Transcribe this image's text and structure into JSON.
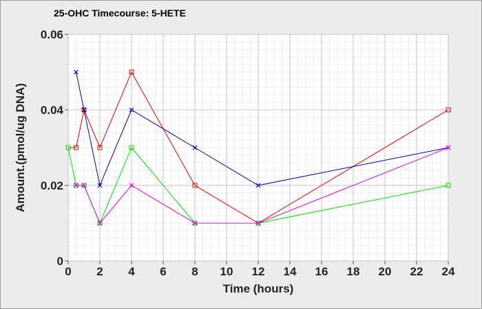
{
  "chart_data": {
    "type": "line",
    "title": "25-OHC Timecourse: 5-HETE",
    "xlabel": "Time (hours)",
    "ylabel": "Amount.(pmol/ug DNA)",
    "xlim": [
      0,
      24
    ],
    "ylim": [
      0,
      0.06
    ],
    "x_ticks": [
      0,
      2,
      4,
      6,
      8,
      10,
      12,
      14,
      16,
      18,
      20,
      22,
      24
    ],
    "y_ticks": [
      0,
      0.02,
      0.04,
      0.06
    ],
    "x_tick_labels": [
      "0",
      "2",
      "4",
      "6",
      "8",
      "10",
      "12",
      "14",
      "16",
      "18",
      "20",
      "22",
      "24"
    ],
    "y_tick_labels": [
      "0",
      "0.02",
      "0.04",
      "0.06"
    ],
    "grid": true,
    "legend": "none",
    "series": [
      {
        "color": "#dd0000",
        "marker": "square",
        "points": [
          [
            0,
            0.03
          ],
          [
            0.5,
            0.03
          ],
          [
            1,
            0.04
          ],
          [
            2,
            0.03
          ],
          [
            4,
            0.05
          ],
          [
            8,
            0.02
          ],
          [
            12,
            0.01
          ],
          [
            24,
            0.04
          ]
        ]
      },
      {
        "color": "#00dd00",
        "marker": "square",
        "points": [
          [
            0,
            0.03
          ],
          [
            0.5,
            0.02
          ],
          [
            1,
            0.02
          ],
          [
            2,
            0.01
          ],
          [
            4,
            0.03
          ],
          [
            8,
            0.01
          ],
          [
            12,
            0.01
          ],
          [
            24,
            0.02
          ]
        ]
      },
      {
        "color": "#0000aa",
        "marker": "x",
        "points": [
          [
            0.5,
            0.05
          ],
          [
            1,
            0.04
          ],
          [
            2,
            0.02
          ],
          [
            4,
            0.04
          ],
          [
            8,
            0.03
          ],
          [
            12,
            0.02
          ],
          [
            24,
            0.03
          ]
        ]
      },
      {
        "color": "#dd00dd",
        "marker": "x",
        "points": [
          [
            0.5,
            0.02
          ],
          [
            1,
            0.02
          ],
          [
            2,
            0.01
          ],
          [
            4,
            0.02
          ],
          [
            8,
            0.01
          ],
          [
            12,
            0.01
          ],
          [
            24,
            0.03
          ]
        ]
      }
    ]
  }
}
